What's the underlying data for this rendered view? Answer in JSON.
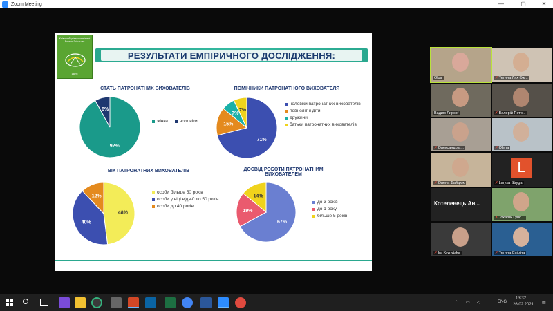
{
  "window": {
    "title": "Zoom Meeting",
    "controls": {
      "minimize": "—",
      "maximize": "▢",
      "close": "✕"
    }
  },
  "slide": {
    "logo_text": "Київський університет імені Бориса Грінченка",
    "logo_year": "1876",
    "title": "РЕЗУЛЬТАТИ ЕМПІРИЧНОГО ДОСЛІДЖЕННЯ:",
    "charts": {
      "gender": {
        "title": "СТАТЬ ПАТРОНАТНИХ ВИХОВАТЕЛІВ",
        "legend": [
          "жінки",
          "чоловіки"
        ],
        "values": [
          92,
          8
        ],
        "labels": [
          "92%",
          "8%"
        ],
        "colors": [
          "#1a9a8a",
          "#1f3870"
        ]
      },
      "helpers": {
        "title": "ПОМІЧНИКИ ПАТРОНАТНОГО ВИХОВАТЕЛЯ",
        "legend": [
          "чоловіки патронатних вихователів",
          "повнолітні діти",
          "дружини",
          "батьки патронатних вихователів"
        ],
        "values": [
          71,
          15,
          7,
          7
        ],
        "labels": [
          "71%",
          "15%",
          "7%",
          "7%"
        ],
        "colors": [
          "#3c4fb0",
          "#e48a1e",
          "#1ab0a8",
          "#f0d31c"
        ]
      },
      "age": {
        "title": "ВІК ПАТРОНАТНИХ ВИХОВАТЕЛІВ",
        "legend": [
          "особи більше 50 років",
          "особи у віці від 40 до 50 років",
          "особи до 40 років"
        ],
        "values": [
          48,
          40,
          12
        ],
        "labels": [
          "48%",
          "40%",
          "12%"
        ],
        "colors": [
          "#f3ec58",
          "#3c4fb0",
          "#e48a1e"
        ]
      },
      "experience": {
        "title": "ДОСВІД РОБОТИ ПАТРОНАТНИМ ВИХОВАТЕЛЕМ",
        "legend": [
          "до 3 років",
          "до 1 року",
          "більше 5 років"
        ],
        "values": [
          67,
          19,
          14
        ],
        "labels": [
          "67%",
          "19%",
          "14%"
        ],
        "colors": [
          "#6a7fd1",
          "#ea5a6e",
          "#f0d31c"
        ]
      }
    }
  },
  "participants": [
    {
      "name": "Olga",
      "muted": false
    },
    {
      "name": "Тетяна Лях (Ук...",
      "muted": true
    },
    {
      "name": "Вадим Лирсвf",
      "muted": false
    },
    {
      "name": "Валерій Петр...",
      "muted": true
    },
    {
      "name": "Олександра ...",
      "muted": true
    },
    {
      "name": "Olena",
      "muted": true
    },
    {
      "name": "Олена Файдюк",
      "muted": true
    },
    {
      "name": "Larysa Stryga",
      "muted": true,
      "initial": "L"
    },
    {
      "name": "Котелевець  Ан...",
      "muted": true,
      "name_only": true
    },
    {
      "name": "Tokaruk Lyud...",
      "muted": true
    },
    {
      "name": "Ira Krynytska",
      "muted": true
    },
    {
      "name": "Тетяна Спіріна",
      "muted": true
    }
  ],
  "taskbar": {
    "time": "13:32",
    "date": "26.02.2021",
    "language": "ENG",
    "search_icon": "search-icon"
  }
}
